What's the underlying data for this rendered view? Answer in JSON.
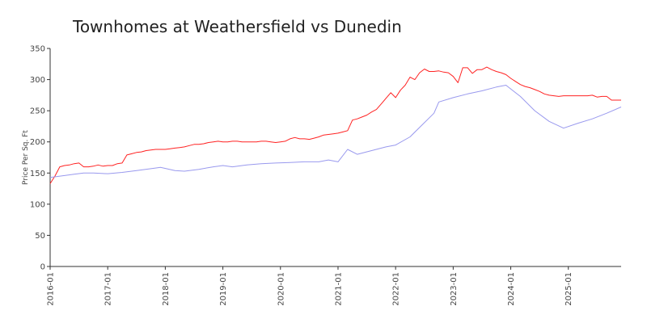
{
  "chart_data": {
    "type": "line",
    "title": "Townhomes at Weathersfield vs Dunedin",
    "xlabel": "",
    "ylabel": "Price Per Sq. Ft",
    "ylim": [
      0,
      350
    ],
    "y_ticks": [
      0,
      50,
      100,
      150,
      200,
      250,
      300,
      350
    ],
    "xlim": [
      "2016-01",
      "2025-12"
    ],
    "x_ticks": [
      "2016-01",
      "2017-01",
      "2018-01",
      "2019-01",
      "2020-01",
      "2021-01",
      "2022-01",
      "2023-01",
      "2024-01",
      "2025-01"
    ],
    "grid": false,
    "legend": "none",
    "series": [
      {
        "color": "#ff2222",
        "points": [
          [
            "2016-01",
            133
          ],
          [
            "2016-02",
            145
          ],
          [
            "2016-03",
            160
          ],
          [
            "2016-04",
            162
          ],
          [
            "2016-05",
            163
          ],
          [
            "2016-06",
            165
          ],
          [
            "2016-07",
            166
          ],
          [
            "2016-08",
            160
          ],
          [
            "2016-09",
            160
          ],
          [
            "2016-10",
            161
          ],
          [
            "2016-11",
            163
          ],
          [
            "2016-12",
            161
          ],
          [
            "2017-01",
            162
          ],
          [
            "2017-02",
            162
          ],
          [
            "2017-03",
            165
          ],
          [
            "2017-04",
            166
          ],
          [
            "2017-05",
            179
          ],
          [
            "2017-06",
            181
          ],
          [
            "2017-07",
            183
          ],
          [
            "2017-08",
            184
          ],
          [
            "2017-09",
            186
          ],
          [
            "2017-10",
            187
          ],
          [
            "2017-11",
            188
          ],
          [
            "2017-12",
            188
          ],
          [
            "2018-01",
            188
          ],
          [
            "2018-02",
            189
          ],
          [
            "2018-03",
            190
          ],
          [
            "2018-04",
            191
          ],
          [
            "2018-05",
            192
          ],
          [
            "2018-06",
            194
          ],
          [
            "2018-07",
            196
          ],
          [
            "2018-08",
            196
          ],
          [
            "2018-09",
            197
          ],
          [
            "2018-10",
            199
          ],
          [
            "2018-11",
            200
          ],
          [
            "2018-12",
            201
          ],
          [
            "2019-01",
            200
          ],
          [
            "2019-02",
            200
          ],
          [
            "2019-03",
            201
          ],
          [
            "2019-04",
            201
          ],
          [
            "2019-05",
            200
          ],
          [
            "2019-06",
            200
          ],
          [
            "2019-07",
            200
          ],
          [
            "2019-08",
            200
          ],
          [
            "2019-09",
            201
          ],
          [
            "2019-10",
            201
          ],
          [
            "2019-11",
            200
          ],
          [
            "2019-12",
            199
          ],
          [
            "2020-01",
            200
          ],
          [
            "2020-02",
            201
          ],
          [
            "2020-03",
            205
          ],
          [
            "2020-04",
            207
          ],
          [
            "2020-05",
            205
          ],
          [
            "2020-06",
            205
          ],
          [
            "2020-07",
            204
          ],
          [
            "2020-08",
            206
          ],
          [
            "2020-09",
            208
          ],
          [
            "2020-10",
            211
          ],
          [
            "2020-11",
            212
          ],
          [
            "2020-12",
            213
          ],
          [
            "2021-01",
            214
          ],
          [
            "2021-02",
            216
          ],
          [
            "2021-03",
            218
          ],
          [
            "2021-04",
            235
          ],
          [
            "2021-05",
            237
          ],
          [
            "2021-06",
            240
          ],
          [
            "2021-07",
            243
          ],
          [
            "2021-08",
            248
          ],
          [
            "2021-09",
            252
          ],
          [
            "2021-10",
            261
          ],
          [
            "2021-11",
            270
          ],
          [
            "2021-12",
            279
          ],
          [
            "2022-01",
            271
          ],
          [
            "2022-02",
            283
          ],
          [
            "2022-03",
            291
          ],
          [
            "2022-04",
            304
          ],
          [
            "2022-05",
            300
          ],
          [
            "2022-06",
            311
          ],
          [
            "2022-07",
            317
          ],
          [
            "2022-08",
            313
          ],
          [
            "2022-09",
            313
          ],
          [
            "2022-10",
            314
          ],
          [
            "2022-11",
            312
          ],
          [
            "2022-12",
            311
          ],
          [
            "2023-01",
            305
          ],
          [
            "2023-02",
            295
          ],
          [
            "2023-03",
            319
          ],
          [
            "2023-04",
            319
          ],
          [
            "2023-05",
            310
          ],
          [
            "2023-06",
            316
          ],
          [
            "2023-07",
            316
          ],
          [
            "2023-08",
            320
          ],
          [
            "2023-09",
            316
          ],
          [
            "2023-10",
            313
          ],
          [
            "2023-11",
            311
          ],
          [
            "2023-12",
            308
          ],
          [
            "2024-01",
            302
          ],
          [
            "2024-02",
            297
          ],
          [
            "2024-03",
            292
          ],
          [
            "2024-04",
            289
          ],
          [
            "2024-05",
            287
          ],
          [
            "2024-06",
            284
          ],
          [
            "2024-07",
            281
          ],
          [
            "2024-08",
            277
          ],
          [
            "2024-09",
            275
          ],
          [
            "2024-10",
            274
          ],
          [
            "2024-11",
            273
          ],
          [
            "2024-12",
            274
          ],
          [
            "2025-01",
            274
          ],
          [
            "2025-02",
            274
          ],
          [
            "2025-03",
            274
          ],
          [
            "2025-04",
            274
          ],
          [
            "2025-05",
            274
          ],
          [
            "2025-06",
            275
          ],
          [
            "2025-07",
            272
          ],
          [
            "2025-08",
            273
          ],
          [
            "2025-09",
            273
          ],
          [
            "2025-10",
            267
          ],
          [
            "2025-11",
            267
          ],
          [
            "2025-12",
            267
          ]
        ]
      },
      {
        "color": "#9999ee",
        "points": [
          [
            "2016-01",
            143
          ],
          [
            "2016-04",
            146
          ],
          [
            "2016-06",
            148
          ],
          [
            "2016-08",
            150
          ],
          [
            "2016-10",
            150
          ],
          [
            "2017-01",
            149
          ],
          [
            "2017-04",
            151
          ],
          [
            "2017-07",
            154
          ],
          [
            "2017-10",
            157
          ],
          [
            "2017-12",
            159
          ],
          [
            "2018-03",
            154
          ],
          [
            "2018-05",
            153
          ],
          [
            "2018-08",
            156
          ],
          [
            "2018-11",
            160
          ],
          [
            "2019-01",
            162
          ],
          [
            "2019-03",
            160
          ],
          [
            "2019-06",
            163
          ],
          [
            "2019-09",
            165
          ],
          [
            "2019-12",
            166
          ],
          [
            "2020-03",
            167
          ],
          [
            "2020-06",
            168
          ],
          [
            "2020-09",
            168
          ],
          [
            "2020-11",
            171
          ],
          [
            "2021-01",
            168
          ],
          [
            "2021-03",
            188
          ],
          [
            "2021-05",
            180
          ],
          [
            "2021-08",
            186
          ],
          [
            "2021-11",
            192
          ],
          [
            "2022-01",
            195
          ],
          [
            "2022-04",
            208
          ],
          [
            "2022-09",
            246
          ],
          [
            "2022-10",
            264
          ],
          [
            "2023-01",
            271
          ],
          [
            "2023-04",
            277
          ],
          [
            "2023-07",
            282
          ],
          [
            "2023-10",
            288
          ],
          [
            "2023-12",
            291
          ],
          [
            "2024-03",
            273
          ],
          [
            "2024-06",
            250
          ],
          [
            "2024-09",
            233
          ],
          [
            "2024-12",
            222
          ],
          [
            "2025-03",
            230
          ],
          [
            "2025-06",
            237
          ],
          [
            "2025-09",
            246
          ],
          [
            "2025-12",
            256
          ]
        ]
      }
    ]
  }
}
